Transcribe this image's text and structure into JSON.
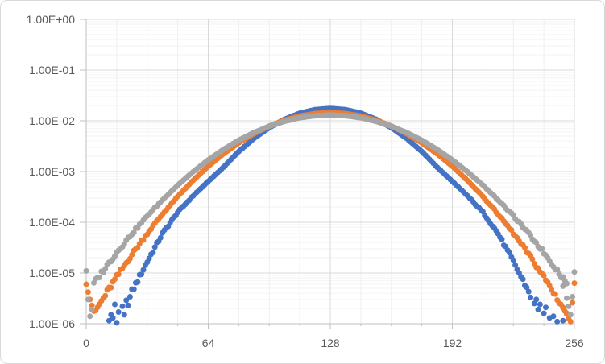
{
  "chart_data": {
    "type": "scatter",
    "title": "",
    "legend": "none",
    "x_axis": {
      "min": 0,
      "max": 256,
      "ticks": [
        0,
        64,
        128,
        192,
        256
      ],
      "minor_step": 16,
      "major_step": 64
    },
    "y_axis": {
      "scale": "log10",
      "max_exp": 0,
      "min_exp": -6,
      "tick_labels": [
        "1.00E+00",
        "1.00E-01",
        "1.00E-02",
        "1.00E-03",
        "1.00E-04",
        "1.00E-05",
        "1.00E-06"
      ]
    },
    "grid": {
      "h_major_color": "#D9D9D9",
      "h_minor_color": "#F3F3F3",
      "v_major_color": "#D9D9D9",
      "v_minor_color": "#EFEFEF",
      "axis_color": "#BFBFBF",
      "label_color": "#595959"
    },
    "series": [
      {
        "name": "series-1-blue",
        "color": "#4472C4",
        "marker_radius": 3.5,
        "peak": 0.0175,
        "control_points": [
          [
            24,
            4.3e-06
          ],
          [
            32,
            1.67e-05
          ],
          [
            40,
            6e-05
          ],
          [
            48,
            0.000158
          ],
          [
            56,
            0.00033
          ],
          [
            64,
            0.00064
          ],
          [
            72,
            0.00122
          ],
          [
            80,
            0.00248
          ],
          [
            88,
            0.0045
          ],
          [
            96,
            0.00734
          ],
          [
            104,
            0.0107
          ],
          [
            112,
            0.0141
          ],
          [
            120,
            0.0166
          ],
          [
            128,
            0.0175
          ],
          [
            136,
            0.0166
          ],
          [
            144,
            0.0141
          ],
          [
            152,
            0.0107
          ],
          [
            160,
            0.00734
          ],
          [
            168,
            0.0045
          ],
          [
            176,
            0.00248
          ],
          [
            184,
            0.00122
          ],
          [
            192,
            0.00064
          ],
          [
            200,
            0.00033
          ],
          [
            208,
            0.000158
          ],
          [
            216,
            6e-05
          ],
          [
            224,
            1.67e-05
          ],
          [
            232,
            4.3e-06
          ]
        ],
        "extra_points": [
          [
            12,
            1.15e-06
          ],
          [
            13,
            1.5e-06
          ],
          [
            14,
            1.3e-06
          ],
          [
            15,
            2.4e-06
          ],
          [
            16,
            1.05e-06
          ],
          [
            17,
            1.7e-06
          ],
          [
            19,
            2.2e-06
          ],
          [
            20,
            1.5e-06
          ],
          [
            21,
            2.9e-06
          ],
          [
            22,
            2.3e-06
          ],
          [
            23,
            3.4e-06
          ],
          [
            233,
            3.3e-06
          ],
          [
            235,
            2.5e-06
          ],
          [
            236,
            3e-06
          ],
          [
            237,
            1.9e-06
          ],
          [
            238,
            2.4e-06
          ],
          [
            240,
            1.6e-06
          ],
          [
            241,
            2.1e-06
          ],
          [
            243,
            1.3e-06
          ],
          [
            245,
            1.4e-06
          ],
          [
            247,
            1.1e-06
          ],
          [
            250,
            1.15e-06
          ]
        ]
      },
      {
        "name": "series-2-orange",
        "color": "#ED7D31",
        "marker_radius": 3.5,
        "peak": 0.0145,
        "control_points": [
          [
            4,
            1.55e-06
          ],
          [
            8,
            2.77e-06
          ],
          [
            16,
            8.36e-06
          ],
          [
            24,
            2.33e-05
          ],
          [
            32,
            6.05e-05
          ],
          [
            40,
            0.000145
          ],
          [
            48,
            0.000322
          ],
          [
            56,
            0.000664
          ],
          [
            64,
            0.00127
          ],
          [
            72,
            0.00224
          ],
          [
            80,
            0.00367
          ],
          [
            88,
            0.00558
          ],
          [
            96,
            0.00787
          ],
          [
            104,
            0.0103
          ],
          [
            112,
            0.0124
          ],
          [
            120,
            0.0139
          ],
          [
            128,
            0.0145
          ],
          [
            136,
            0.0139
          ],
          [
            144,
            0.0124
          ],
          [
            152,
            0.0103
          ],
          [
            160,
            0.00787
          ],
          [
            168,
            0.00558
          ],
          [
            176,
            0.00367
          ],
          [
            184,
            0.00224
          ],
          [
            192,
            0.00127
          ],
          [
            200,
            0.000664
          ],
          [
            208,
            0.000322
          ],
          [
            216,
            0.000145
          ],
          [
            224,
            6.05e-05
          ],
          [
            232,
            2.33e-05
          ],
          [
            240,
            8.36e-06
          ],
          [
            248,
            2.77e-06
          ],
          [
            252,
            1.55e-06
          ]
        ],
        "extra_points": [
          [
            0,
            6e-06
          ],
          [
            1,
            4.2e-06
          ],
          [
            2,
            3e-06
          ],
          [
            3,
            2.3e-06
          ],
          [
            250,
            2.1e-06
          ],
          [
            252,
            1.6e-06
          ],
          [
            253,
            1.25e-06
          ],
          [
            254,
            1.1e-06
          ],
          [
            255,
            2.6e-06
          ],
          [
            256,
            6.3e-06
          ]
        ]
      },
      {
        "name": "series-3-gray",
        "color": "#A5A5A5",
        "marker_radius": 3.5,
        "peak": 0.013,
        "control_points": [
          [
            4,
            6.2e-06
          ],
          [
            8,
            1e-05
          ],
          [
            16,
            2.53e-05
          ],
          [
            24,
            5.98e-05
          ],
          [
            32,
            0.000133
          ],
          [
            40,
            0.000276
          ],
          [
            48,
            0.000538
          ],
          [
            56,
            0.000986
          ],
          [
            64,
            0.00169
          ],
          [
            72,
            0.00273
          ],
          [
            80,
            0.00413
          ],
          [
            88,
            0.00586
          ],
          [
            96,
            0.00781
          ],
          [
            104,
            0.00976
          ],
          [
            112,
            0.0115
          ],
          [
            120,
            0.0126
          ],
          [
            128,
            0.013
          ],
          [
            136,
            0.0126
          ],
          [
            144,
            0.0115
          ],
          [
            152,
            0.00976
          ],
          [
            160,
            0.00781
          ],
          [
            168,
            0.00586
          ],
          [
            176,
            0.00413
          ],
          [
            184,
            0.00273
          ],
          [
            192,
            0.00169
          ],
          [
            200,
            0.000986
          ],
          [
            208,
            0.000538
          ],
          [
            216,
            0.000276
          ],
          [
            224,
            0.000133
          ],
          [
            232,
            5.98e-05
          ],
          [
            240,
            2.53e-05
          ],
          [
            248,
            1e-05
          ],
          [
            252,
            6.2e-06
          ]
        ],
        "extra_points": [
          [
            0,
            1.1e-05
          ],
          [
            1,
            3e-06
          ],
          [
            2,
            1.4e-06
          ],
          [
            3,
            1.9e-06
          ],
          [
            250,
            5.5e-06
          ],
          [
            252,
            3.2e-06
          ],
          [
            253,
            2.2e-06
          ],
          [
            254,
            1.5e-06
          ],
          [
            255,
            3.4e-06
          ],
          [
            256,
            1.05e-05
          ]
        ]
      }
    ]
  }
}
